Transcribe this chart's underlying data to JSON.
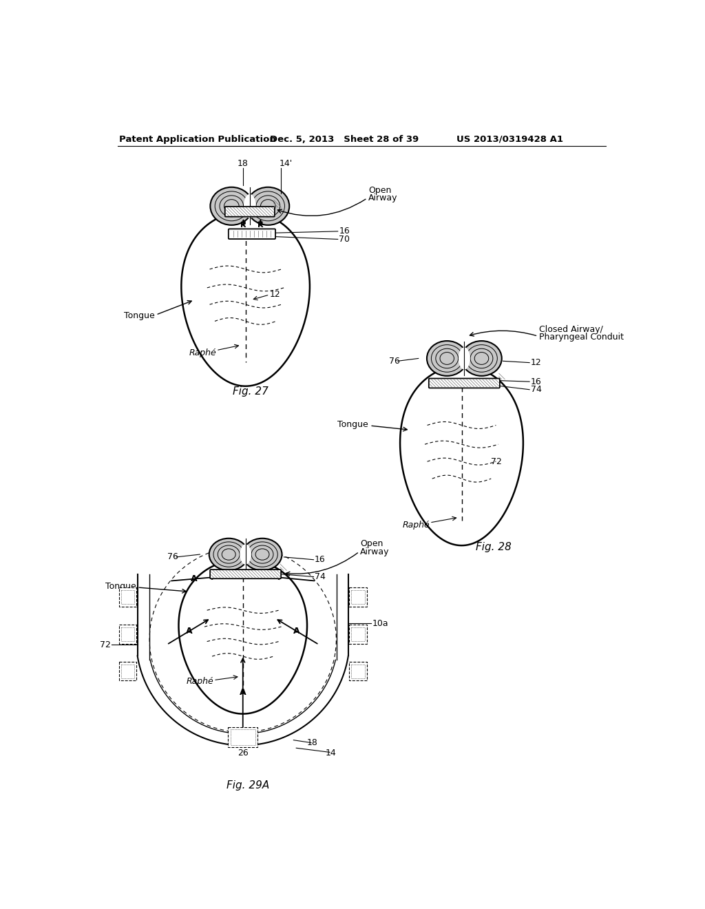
{
  "background_color": "#ffffff",
  "header_left": "Patent Application Publication",
  "header_mid": "Dec. 5, 2013   Sheet 28 of 39",
  "header_right": "US 2013/0319428 A1",
  "fig27_caption": "Fig. 27",
  "fig28_caption": "Fig. 28",
  "fig29a_caption": "Fig. 29A",
  "line_color": "#000000",
  "text_color": "#000000",
  "gray_fill": "#c8c8c8",
  "dot_fill": "#b0b0b0"
}
